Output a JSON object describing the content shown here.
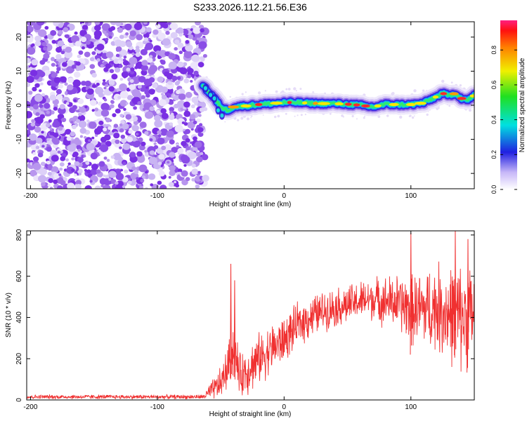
{
  "title": "S233.2026.112.21.56.E36",
  "chart_data": [
    {
      "type": "heatmap",
      "title": "S233.2026.112.21.56.E36",
      "xlabel": "Height of straight line (km)",
      "ylabel": "Frequency (Hz)",
      "xlim": [
        -203,
        150
      ],
      "ylim": [
        -24.5,
        24.5
      ],
      "x_ticks": [
        -200,
        -100,
        0,
        100
      ],
      "x_tick_labels": [
        "-200",
        "-100",
        "0",
        "100"
      ],
      "y_ticks": [
        -20,
        -10,
        0,
        10,
        20
      ],
      "y_tick_labels": [
        "-20",
        "-10",
        "0",
        "10",
        "20"
      ],
      "noise_region_km": [
        -203,
        -64
      ],
      "signal_trace": {
        "x": [
          -64,
          -60,
          -56,
          -52,
          -48,
          -44,
          -40,
          -30,
          -20,
          -10,
          0,
          10,
          20,
          30,
          40,
          50,
          60,
          70,
          80,
          90,
          100,
          110,
          120,
          125,
          130,
          135,
          140,
          145,
          150
        ],
        "y": [
          6,
          4,
          2.5,
          0.5,
          -1,
          -1.5,
          -0.5,
          -0.2,
          0.2,
          0.5,
          0.8,
          0.8,
          0.6,
          0.5,
          0.5,
          0.3,
          0,
          -0.5,
          0.3,
          0.2,
          0.2,
          0.7,
          2.5,
          3.5,
          2.8,
          3.5,
          2,
          1.5,
          3
        ]
      },
      "colorbar": {
        "label": "Normalized spectral amplitude",
        "range": [
          0,
          0.97
        ],
        "ticks": [
          0,
          0.2,
          0.4,
          0.6,
          0.8
        ],
        "tick_labels": [
          "0.0",
          "0.2",
          "0.4",
          "0.6",
          "0.8"
        ]
      }
    },
    {
      "type": "line",
      "title": "",
      "xlabel": "Height of straight line (km)",
      "ylabel": "SNR (10 * v/v)",
      "xlim": [
        -203,
        150
      ],
      "ylim": [
        0,
        820
      ],
      "x_ticks": [
        -200,
        -100,
        0,
        100
      ],
      "x_tick_labels": [
        "-200",
        "-100",
        "0",
        "100"
      ],
      "y_ticks": [
        0,
        200,
        400,
        600,
        800
      ],
      "y_tick_labels": [
        "0",
        "200",
        "400",
        "600",
        "800"
      ],
      "series": [
        {
          "name": "SNR",
          "color": "#f03030",
          "envelope_x": [
            -203,
            -64,
            -60,
            -50,
            -45,
            -40,
            -35,
            -30,
            -20,
            -10,
            0,
            10,
            20,
            30,
            40,
            50,
            60,
            70,
            80,
            90,
            100,
            110,
            120,
            130,
            140,
            150
          ],
          "envelope_y": [
            15,
            15,
            30,
            80,
            150,
            250,
            120,
            140,
            200,
            250,
            290,
            360,
            400,
            430,
            450,
            460,
            480,
            490,
            480,
            470,
            440,
            440,
            450,
            420,
            400,
            420
          ],
          "envelope_spread": [
            12,
            12,
            40,
            90,
            120,
            160,
            120,
            140,
            140,
            140,
            130,
            120,
            120,
            110,
            110,
            110,
            110,
            120,
            140,
            160,
            190,
            220,
            250,
            280,
            300,
            300
          ],
          "spikes": [
            {
              "x": -42,
              "y": 660
            },
            {
              "x": -39,
              "y": 580
            },
            {
              "x": 100,
              "y": 810
            },
            {
              "x": 135,
              "y": 820
            },
            {
              "x": 145,
              "y": 780
            }
          ]
        }
      ]
    }
  ]
}
